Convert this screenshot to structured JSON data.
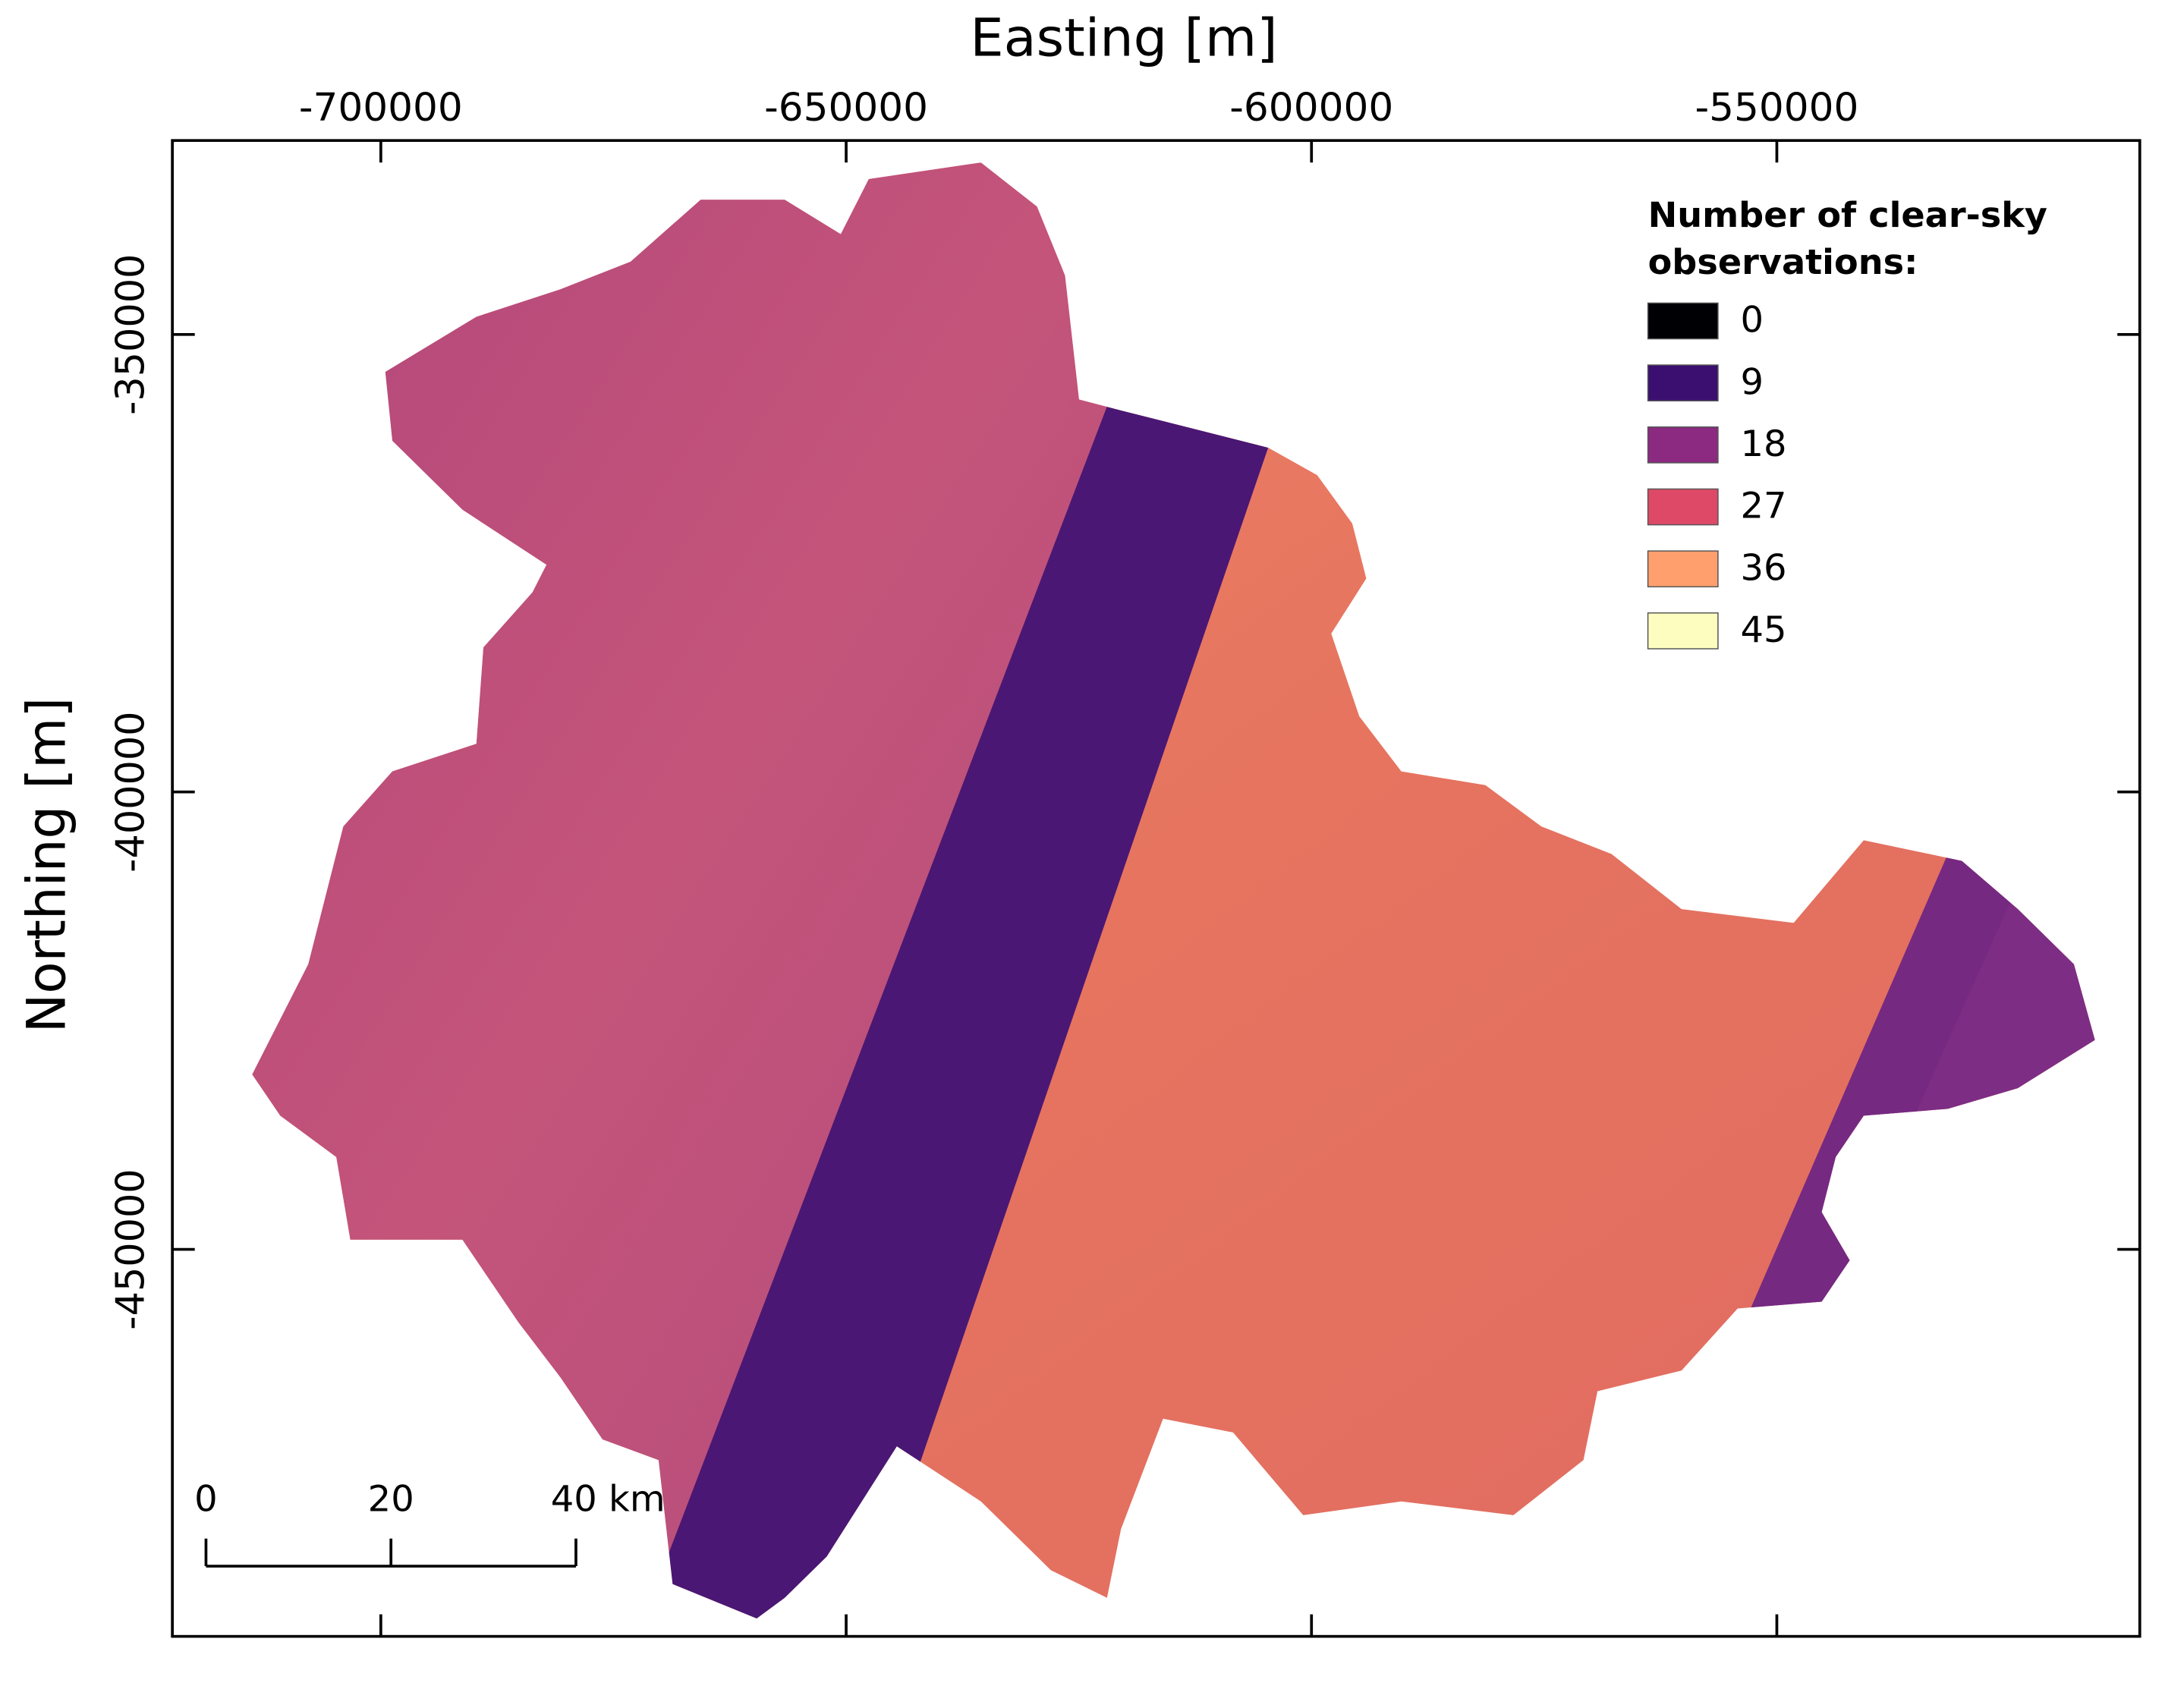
{
  "map": {
    "x_axis": {
      "label": "Easting [m]",
      "lim": [
        -722400,
        -511000
      ],
      "ticks": [
        -700000,
        -650000,
        -600000,
        -550000
      ]
    },
    "y_axis": {
      "label": "Northing [m]",
      "lim": [
        -492300,
        -328800
      ],
      "ticks": [
        -350000,
        -400000,
        -450000
      ]
    },
    "legend": {
      "title_lines": [
        "Number of clear-sky",
        "observations:"
      ],
      "entries": [
        {
          "label": "0",
          "color": "#000004"
        },
        {
          "label": "9",
          "color": "#3b0f70"
        },
        {
          "label": "18",
          "color": "#8c2981"
        },
        {
          "label": "27",
          "color": "#de4968"
        },
        {
          "label": "36",
          "color": "#fe9f6d"
        },
        {
          "label": "45",
          "color": "#fcfdbf"
        }
      ]
    },
    "scale_bar": {
      "labels": [
        "0",
        "20",
        "40 km"
      ]
    }
  }
}
